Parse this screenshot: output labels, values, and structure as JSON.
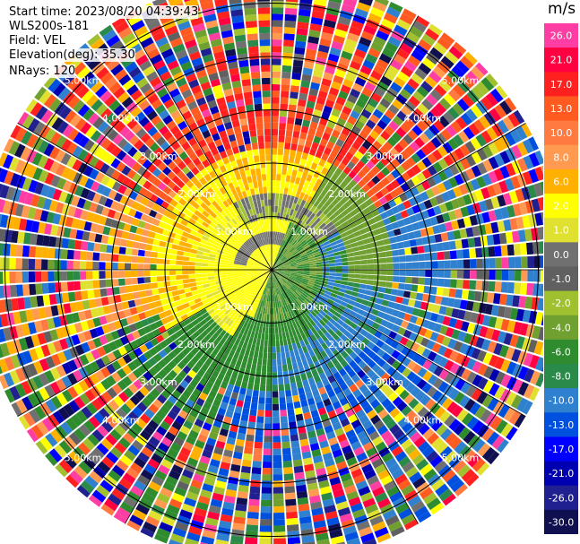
{
  "header": {
    "start_time": "Start time: 2023/08/20 04:39:43",
    "instrument": "WLS200s-181",
    "field": "Field: VEL",
    "elevation": "Elevation(deg): 35.30",
    "nrays": "NRays: 120"
  },
  "colorbar": {
    "unit": "m/s",
    "ticks": [
      "26.0",
      "21.0",
      "17.0",
      "13.0",
      "10.0",
      "8.0",
      "6.0",
      "2.0",
      "1.0",
      "0.0",
      "-1.0",
      "-2.0",
      "-4.0",
      "-6.0",
      "-8.0",
      "-10.0",
      "-13.0",
      "-17.0",
      "-21.0",
      "-26.0",
      "-30.0"
    ],
    "colors": [
      "#ff3ea3",
      "#ff0040",
      "#ff2020",
      "#ff5a20",
      "#ff7a40",
      "#ff9a50",
      "#ffb000",
      "#ffff00",
      "#e0e030",
      "#707070",
      "#606060",
      "#a0c030",
      "#70a030",
      "#2e8b2e",
      "#2a8a4a",
      "#3080d0",
      "#0050e0",
      "#0000ff",
      "#0000b0",
      "#202090",
      "#101050"
    ]
  },
  "chart_data": {
    "type": "heatmap",
    "title": "",
    "projection": "polar PPI (range rings in km)",
    "field": "VEL",
    "unit": "m/s",
    "nrays": 120,
    "elevation_deg": 35.3,
    "start_time": "2023/08/20 04:39:43",
    "range_rings_km": [
      1.0,
      2.0,
      3.0,
      4.0,
      5.0
    ],
    "ring_labels": [
      "1.00km",
      "2.00km",
      "3.00km",
      "4.00km",
      "5.00km"
    ],
    "max_range_km": 5.5,
    "vmin": -30.0,
    "vmax": 26.0,
    "description_pattern": "near range: yellow (+2 m/s) toward west/south-west, grey (0 m/s) ring, green (-4 to -6 m/s) east, blue (-10 m/s) south-east; outer ranges noisy"
  }
}
